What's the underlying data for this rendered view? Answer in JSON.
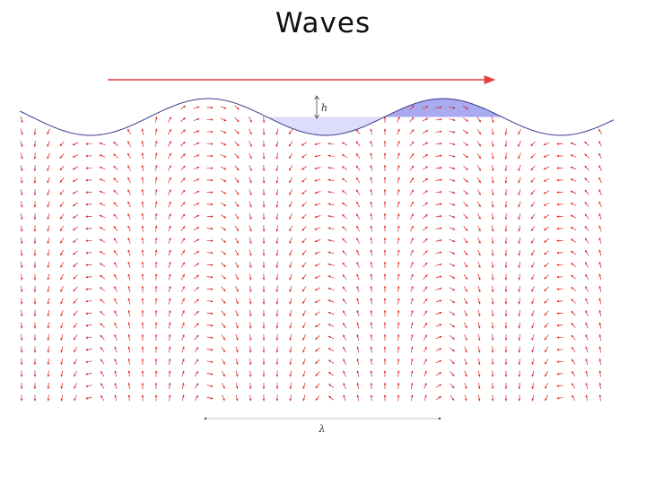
{
  "slide": {
    "title": "Waves"
  },
  "diagram": {
    "height_label": "h",
    "wavelength_label": "λ",
    "colors": {
      "velocity_arrows": "#e02020",
      "propagation_arrow": "#e04040",
      "surface_line": "#3a3a8a",
      "crest_fill": "#aaaaf0",
      "trough_fill": "#dcdcfb",
      "dimension_marks": "#444444"
    },
    "icons": {
      "velocity_field": "small-red-arrows",
      "propagation": "right-arrow"
    }
  }
}
